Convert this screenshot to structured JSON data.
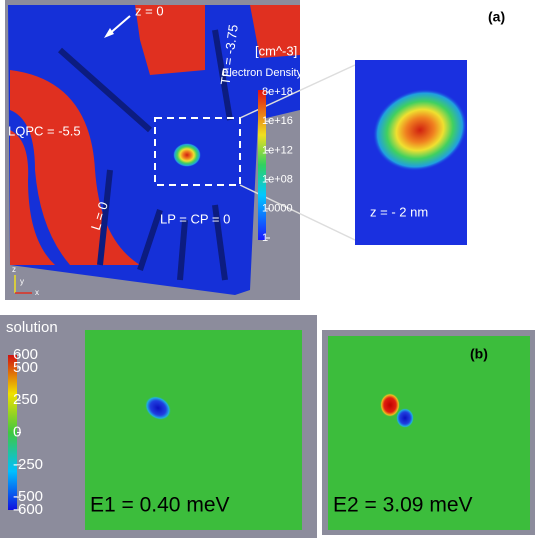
{
  "panel_a": {
    "label": "(a)",
    "annotations": {
      "z0": "z = 0",
      "tp": "TP = -3.75",
      "lqpc": "LQPC = -5.5",
      "l": "L = 0",
      "lp_cp": "LP = CP = 0",
      "z_inset": "z = - 2 nm"
    },
    "axes_labels": [
      "z",
      "y",
      "x"
    ],
    "colorbar": {
      "unit": "[cm^-3]",
      "title": "Electron Density",
      "ticks": [
        "8e+18",
        "1e+16",
        "1e+12",
        "1e+08",
        "10000",
        "1"
      ]
    }
  },
  "panel_b": {
    "label": "(b)",
    "colorbar": {
      "title": "solution",
      "ticks": [
        600,
        500,
        250,
        0,
        -250,
        -500,
        -600
      ]
    },
    "plots": [
      {
        "caption": "E1 = 0.40 meV"
      },
      {
        "caption": "E2 = 3.09 meV"
      }
    ]
  }
}
